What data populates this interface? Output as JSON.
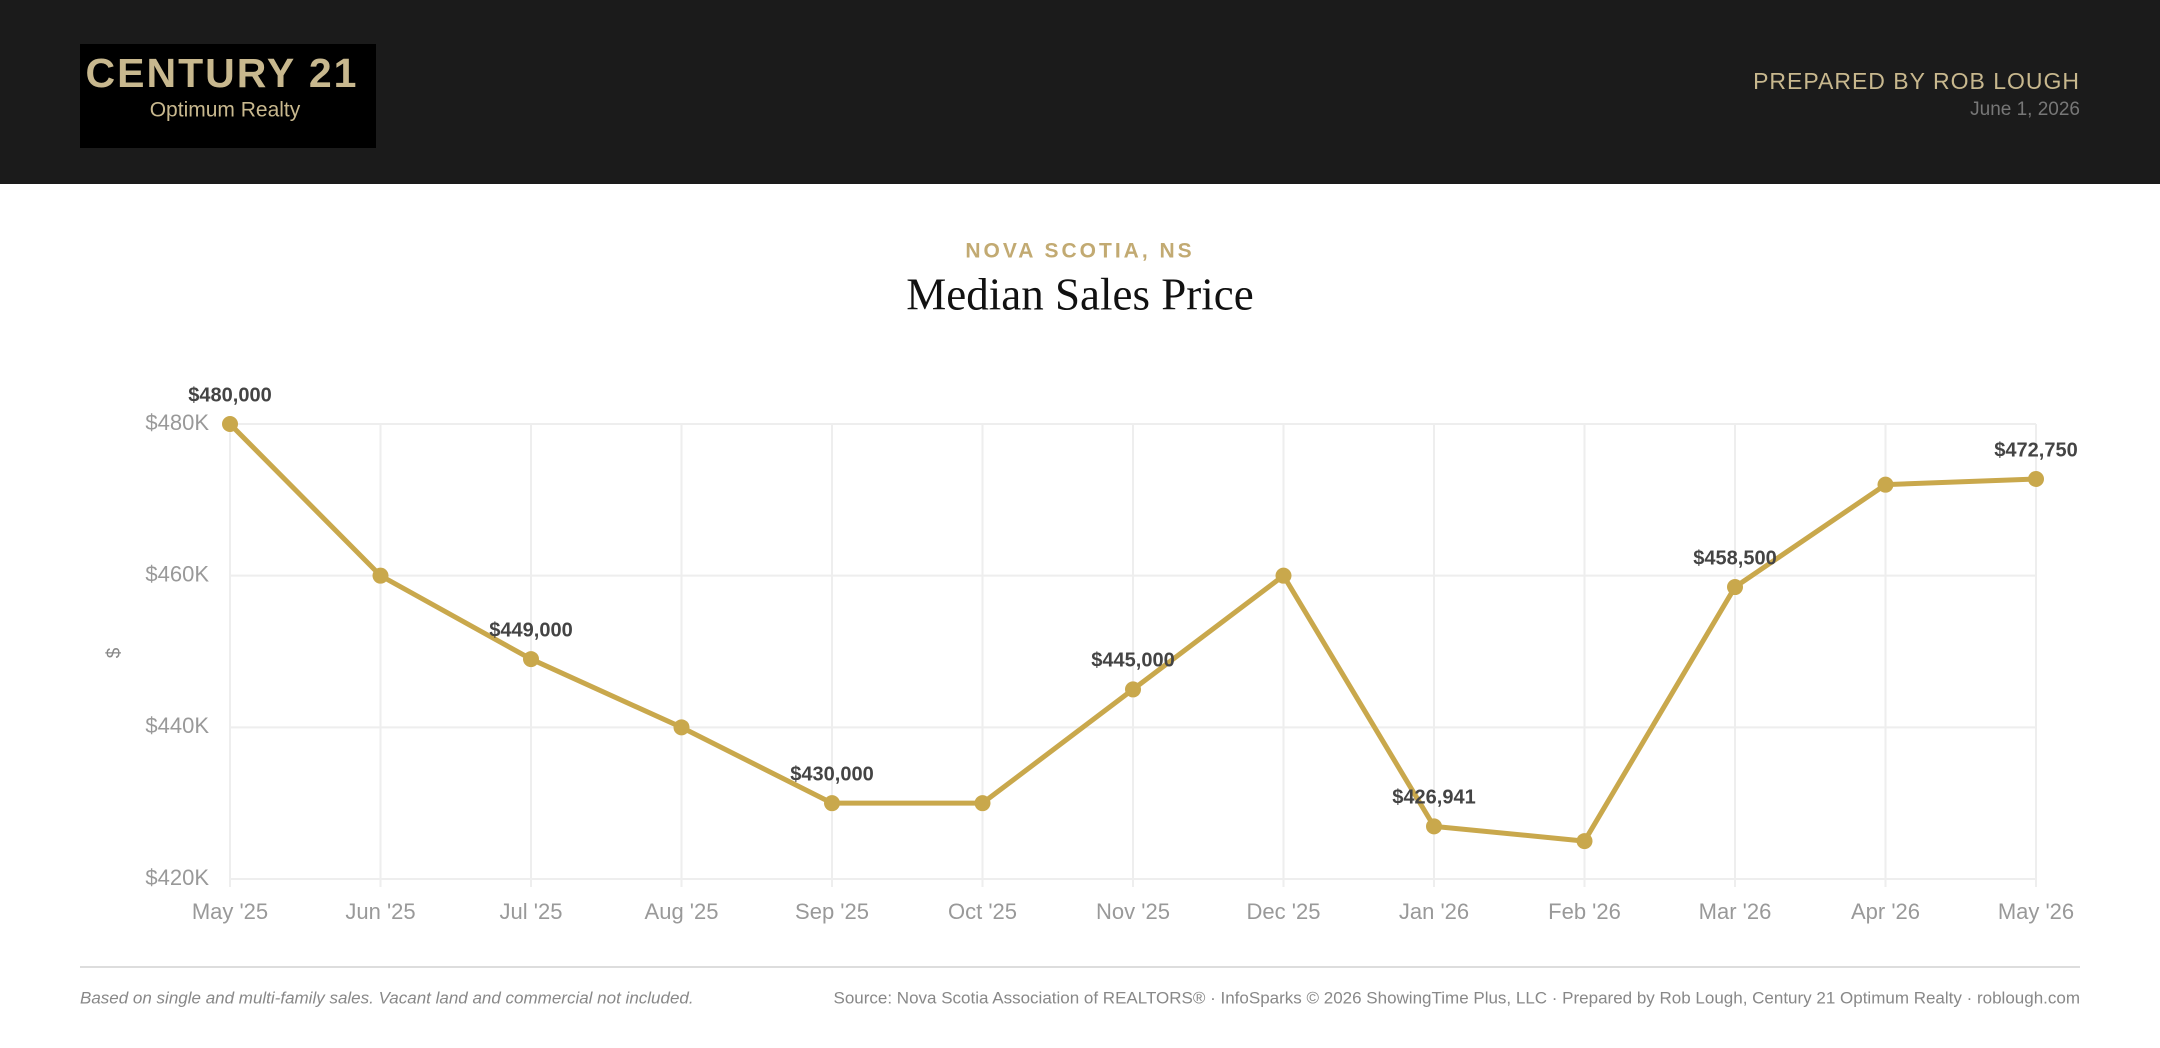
{
  "header": {
    "brand": "CENTURY 21",
    "office": "Optimum Realty",
    "prepared_by": "PREPARED BY ROB LOUGH",
    "date": "June 1, 2026"
  },
  "chart_data": {
    "type": "line",
    "subtitle": "NOVA SCOTIA, NS",
    "title": "Median Sales Price",
    "y_label": "$",
    "categories": [
      "May '25",
      "Jun '25",
      "Jul '25",
      "Aug '25",
      "Sep '25",
      "Oct '25",
      "Nov '25",
      "Dec '25",
      "Jan '26",
      "Feb '26",
      "Mar '26",
      "Apr '26",
      "May '26"
    ],
    "series": [
      {
        "name": "Median Sales Price",
        "color": "#c9a84c",
        "values": [
          480000,
          460000,
          449000,
          440000,
          430000,
          430000,
          445000,
          460000,
          426941,
          425000,
          458500,
          472000,
          472750
        ],
        "value_labels": [
          "$480,000",
          null,
          "$449,000",
          null,
          "$430,000",
          null,
          "$445,000",
          null,
          "$426,941",
          null,
          "$458,500",
          null,
          "$472,750"
        ]
      }
    ],
    "ylim": [
      420000,
      480000
    ],
    "yticks": [
      {
        "value": 420000,
        "label": "$420K"
      },
      {
        "value": 440000,
        "label": "$440K"
      },
      {
        "value": 460000,
        "label": "$460K"
      },
      {
        "value": 480000,
        "label": "$480K"
      }
    ],
    "grid": true
  },
  "footer": {
    "note": "Based on single and multi-family sales. Vacant land and commercial not included.",
    "source": "Source: Nova Scotia Association of REALTORS® · InfoSparks © 2026 ShowingTime Plus, LLC · Prepared by Rob Lough, Century 21 Optimum Realty · roblough.com"
  }
}
